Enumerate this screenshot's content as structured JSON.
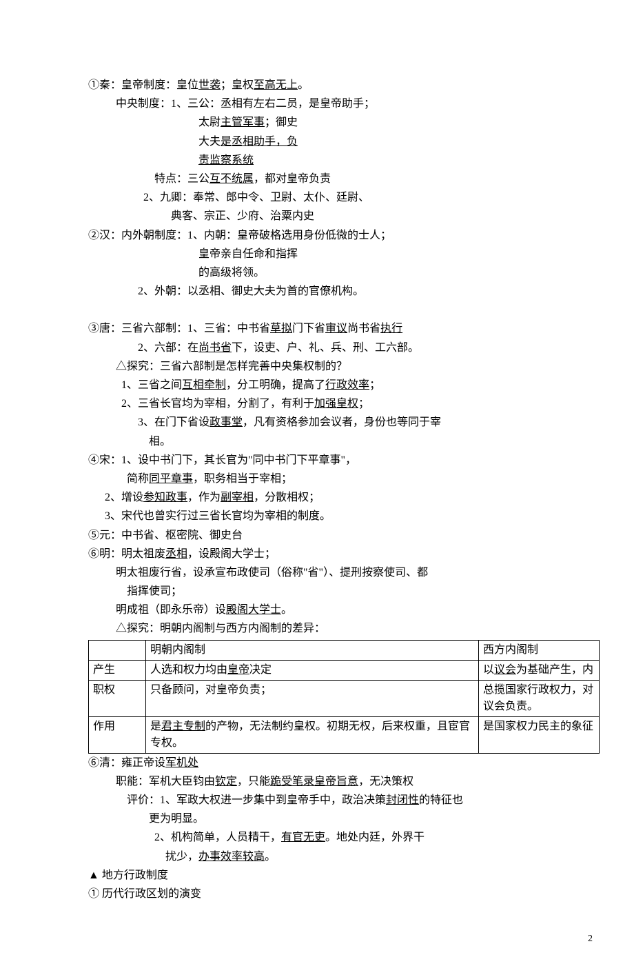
{
  "lines": {
    "l1a": "①秦：皇帝制度：皇位",
    "l1b": "世袭",
    "l1c": "；皇权",
    "l1d": "至高无上",
    "l1e": "。",
    "l2": "          中央制度：1、三公：丞相有左右二员，是皇帝助手；",
    "l3a": "                                        太尉",
    "l3b": "主管军事",
    "l3c": "；御史",
    "l4a": "                                        大夫",
    "l4b": "是丞相助手，负",
    "l5a": "                                        ",
    "l5b": "责监察系统",
    "l6a": "                        特点：三公",
    "l6b": "互不统属",
    "l6c": "，都对皇帝负责",
    "l7": "                    2、九卿：奉常、郎中令、卫尉、太仆、廷尉、",
    "l8": "                              典客、宗正、少府、治粟内史",
    "l9": "②汉：内外朝制度：1、内朝：皇帝破格选用身份低微的士人；",
    "l10": "                                        皇帝亲自任命和指挥",
    "l11": "                                        的高级将领。",
    "l12": "                  2、外朝：以丞相、御史大夫为首的官僚机构。",
    "blank": " ",
    "l13a": "③唐：三省六部制：1、三省：中书省",
    "l13b": "草拟",
    "l13c": "门下省",
    "l13d": "审议",
    "l13e": "尚书省",
    "l13f": "执行",
    "l14a": "                  2、六部：在",
    "l14b": "尚书省",
    "l14c": "下，设吏、户、礼、兵、刑、工六部。",
    "l15": "          △探究：三省六部制是怎样完善中央集权制的？",
    "l16a": "            1、三省之间",
    "l16b": "互相牵制",
    "l16c": "，分工明确，提高了",
    "l16d": "行政效率",
    "l16e": "；",
    "l17a": "            2、三省长官均为宰相，分割了，有利于",
    "l17b": "加强皇权",
    "l17c": "；",
    "l18a": "                  3、在门下省设",
    "l18b": "政事堂",
    "l18c": "，凡有资格参加会议者，身份也等同于宰",
    "l19": "                      相。",
    "l20": "④宋：1、设中书门下，其长官为\"同中书门下平章事\"，",
    "l21a": "              简称",
    "l21b": "同平章事",
    "l21c": "，职务相当于宰相；",
    "l22a": "      2、增设",
    "l22b": "参知政事",
    "l22c": "，作为",
    "l22d": "副宰相",
    "l22e": "，分散相权；",
    "l23": "      3、宋代也曾实行过三省长官均为宰相的制度。",
    "l24": "⑤元：中书省、枢密院、御史台",
    "l25a": "⑥明：明太祖废",
    "l25b": "丞相",
    "l25c": "，设殿阁大学士；",
    "l26": "          明太祖废行省，设承宣布政使司（俗称\"省\"）、提刑按察使司、都",
    "l27": "              指挥使司；",
    "l28a": "          明成祖（即永乐帝）设",
    "l28b": "殿阁大学士",
    "l28c": "。",
    "l29": "          △探究：明朝内阁制与西方内阁制的差异：",
    "t_h1": "",
    "t_h2": "明朝内阁制",
    "t_h3": "西方内阁制",
    "t_r1c1": "产生",
    "t_r1c2a": "人选和权力均由",
    "t_r1c2b": "皇帝",
    "t_r1c2c": "决定",
    "t_r1c3a": "以",
    "t_r1c3b": "议会",
    "t_r1c3c": "为基础产生，内",
    "t_r2c1": "职权",
    "t_r2c2": "只备顾问，对皇帝负责；",
    "t_r2c3": "总揽国家行政权力，对议会负责。",
    "t_r3c1": "作用",
    "t_r3c2a": "是",
    "t_r3c2b": "君主专制",
    "t_r3c2c": "的产物，无法制约皇权。初期无权，后来权重，且宦官专权。",
    "t_r3c3": "是国家权力民主的象征",
    "l30a": "⑥清：雍正帝设",
    "l30b": "军机处",
    "l31a": "          职能：军机大臣钧由",
    "l31b": "钦定",
    "l31c": "，只能",
    "l31d": "跪受笔录皇帝旨意",
    "l31e": "，无决策权",
    "l32a": "              评价：1、军政大权进一步集中到皇帝手中，政治决策",
    "l32b": "封闭性",
    "l32c": "的特征也",
    "l33": "                      更为明显。",
    "l34a": "                        2、机构简单，人员精干，",
    "l34b": "有官无吏",
    "l34c": "。地处内廷，外界干",
    "l35a": "                            扰少，",
    "l35b": "办事效率较高",
    "l35c": "。",
    "l36": "▲ 地方行政制度",
    "l37": "① 历代行政区划的演变",
    "page_number": "2"
  }
}
